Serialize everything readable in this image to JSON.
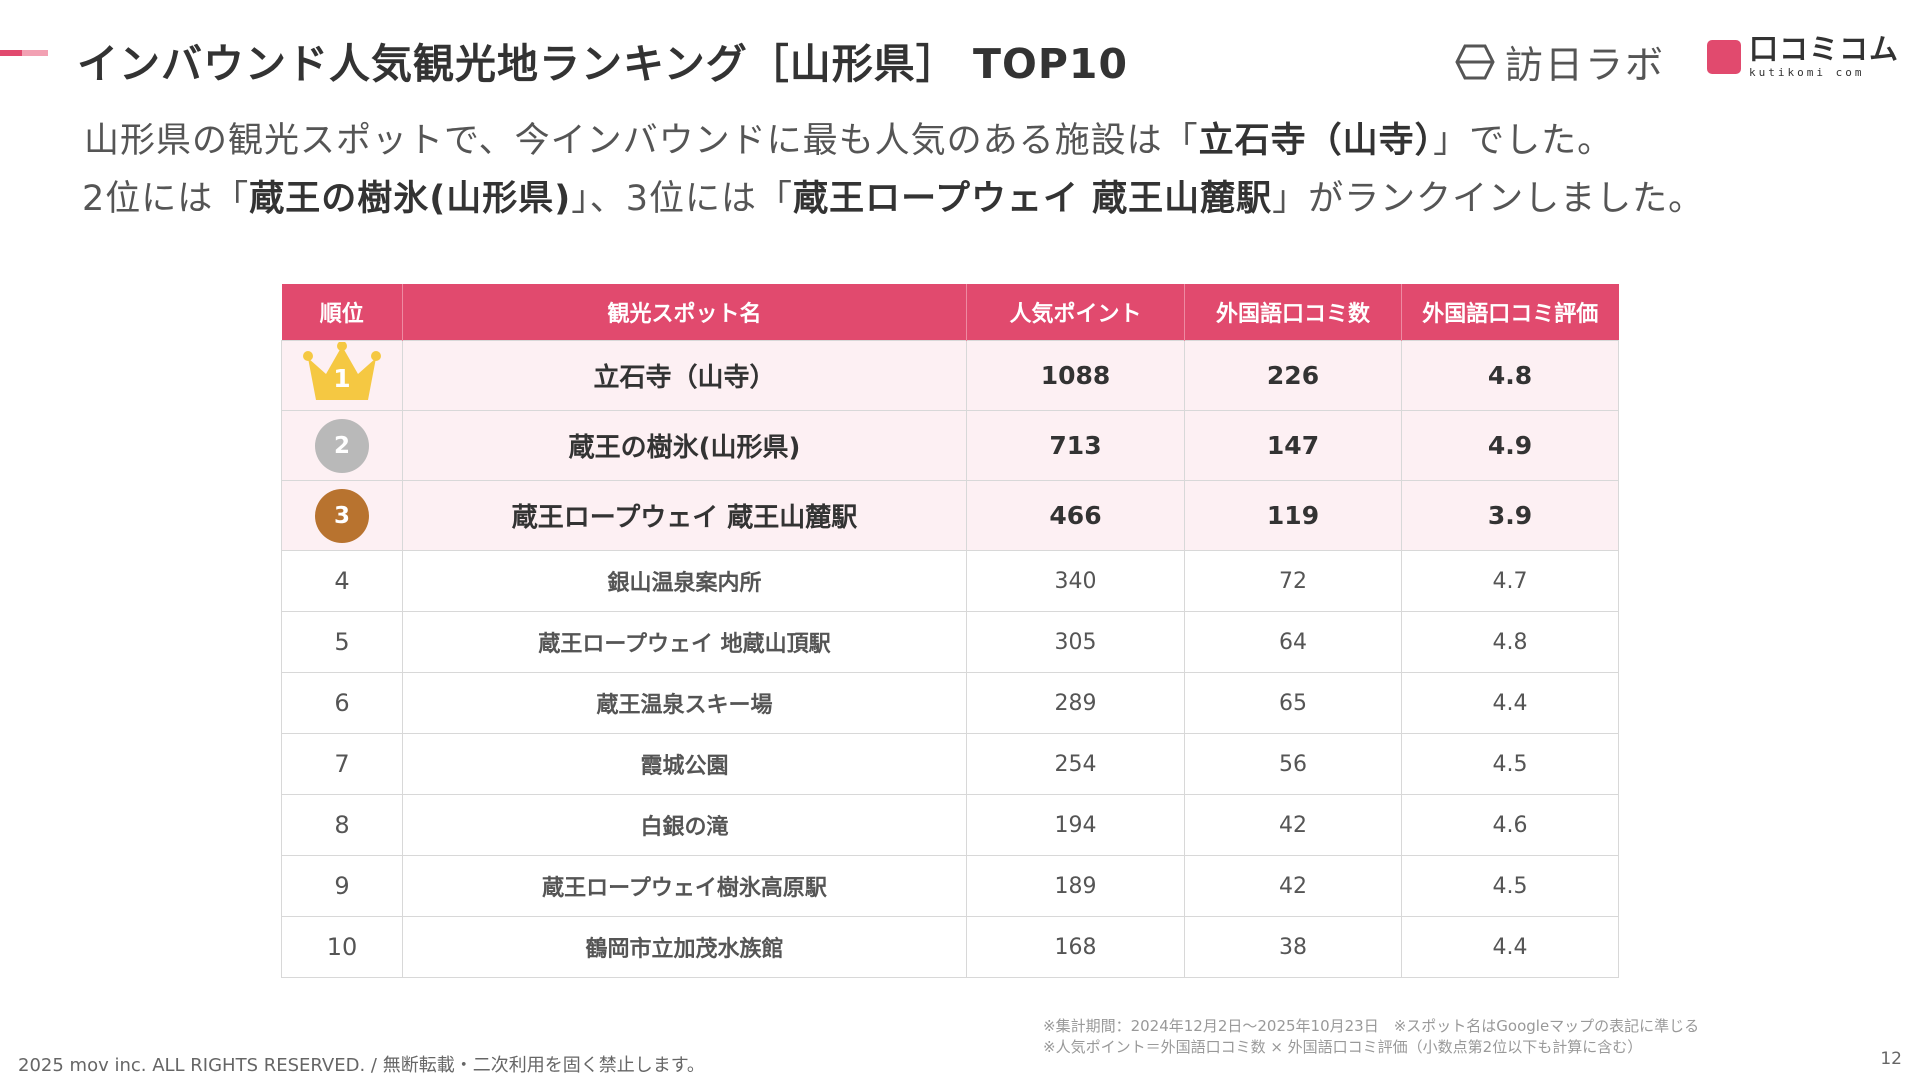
{
  "title": "インバウンド人気観光地ランキング［山形県］ TOP10",
  "logos": {
    "houjitsu_lab": "訪日ラボ",
    "kuchikomi_jp": "口コミコム",
    "kuchikomi_en": "kutikomi com"
  },
  "lead": {
    "line1_pre": "山形県の観光スポットで、今インバウンドに最も人気のある施設は「",
    "line1_bold": "立石寺（山寺）",
    "line1_post": "」でした。",
    "line2_a": "2位には「",
    "line2_b": "蔵王の樹氷(山形県)",
    "line2_c": "」、3位には「",
    "line2_d": "蔵王ロープウェイ 蔵王山麓駅",
    "line2_e": "」がランクインしました。"
  },
  "table": {
    "headers": [
      "順位",
      "観光スポット名",
      "人気ポイント",
      "外国語口コミ数",
      "外国語口コミ評価"
    ],
    "rows": [
      {
        "rank": "1",
        "name": "立石寺（山寺）",
        "points": "1088",
        "reviews": "226",
        "rating": "4.8"
      },
      {
        "rank": "2",
        "name": "蔵王の樹氷(山形県)",
        "points": "713",
        "reviews": "147",
        "rating": "4.9"
      },
      {
        "rank": "3",
        "name": "蔵王ロープウェイ 蔵王山麓駅",
        "points": "466",
        "reviews": "119",
        "rating": "3.9"
      },
      {
        "rank": "4",
        "name": "銀山温泉案内所",
        "points": "340",
        "reviews": "72",
        "rating": "4.7"
      },
      {
        "rank": "5",
        "name": "蔵王ロープウェイ 地蔵山頂駅",
        "points": "305",
        "reviews": "64",
        "rating": "4.8"
      },
      {
        "rank": "6",
        "name": "蔵王温泉スキー場",
        "points": "289",
        "reviews": "65",
        "rating": "4.4"
      },
      {
        "rank": "7",
        "name": "霞城公園",
        "points": "254",
        "reviews": "56",
        "rating": "4.5"
      },
      {
        "rank": "8",
        "name": "白銀の滝",
        "points": "194",
        "reviews": "42",
        "rating": "4.6"
      },
      {
        "rank": "9",
        "name": "蔵王ロープウェイ樹氷高原駅",
        "points": "189",
        "reviews": "42",
        "rating": "4.5"
      },
      {
        "rank": "10",
        "name": "鶴岡市立加茂水族館",
        "points": "168",
        "reviews": "38",
        "rating": "4.4"
      }
    ]
  },
  "notes": {
    "line1": "※集計期間：2024年12月2日〜2025年10月23日　※スポット名はGoogleマップの表記に準じる",
    "line2": "※人気ポイント＝外国語口コミ数 × 外国語口コミ評価（小数点第2位以下も計算に含む）"
  },
  "footer": "2025 mov inc. ALL RIGHTS RESERVED. / 無断転載・二次利用を固く禁止します。",
  "page_number": "12",
  "colors": {
    "accent": "#e14a6e",
    "accent_light": "#f2a1b3",
    "row_highlight": "#fdf0f3",
    "gold": "#f5c842",
    "silver": "#b9b9b9",
    "bronze": "#b8732f"
  }
}
